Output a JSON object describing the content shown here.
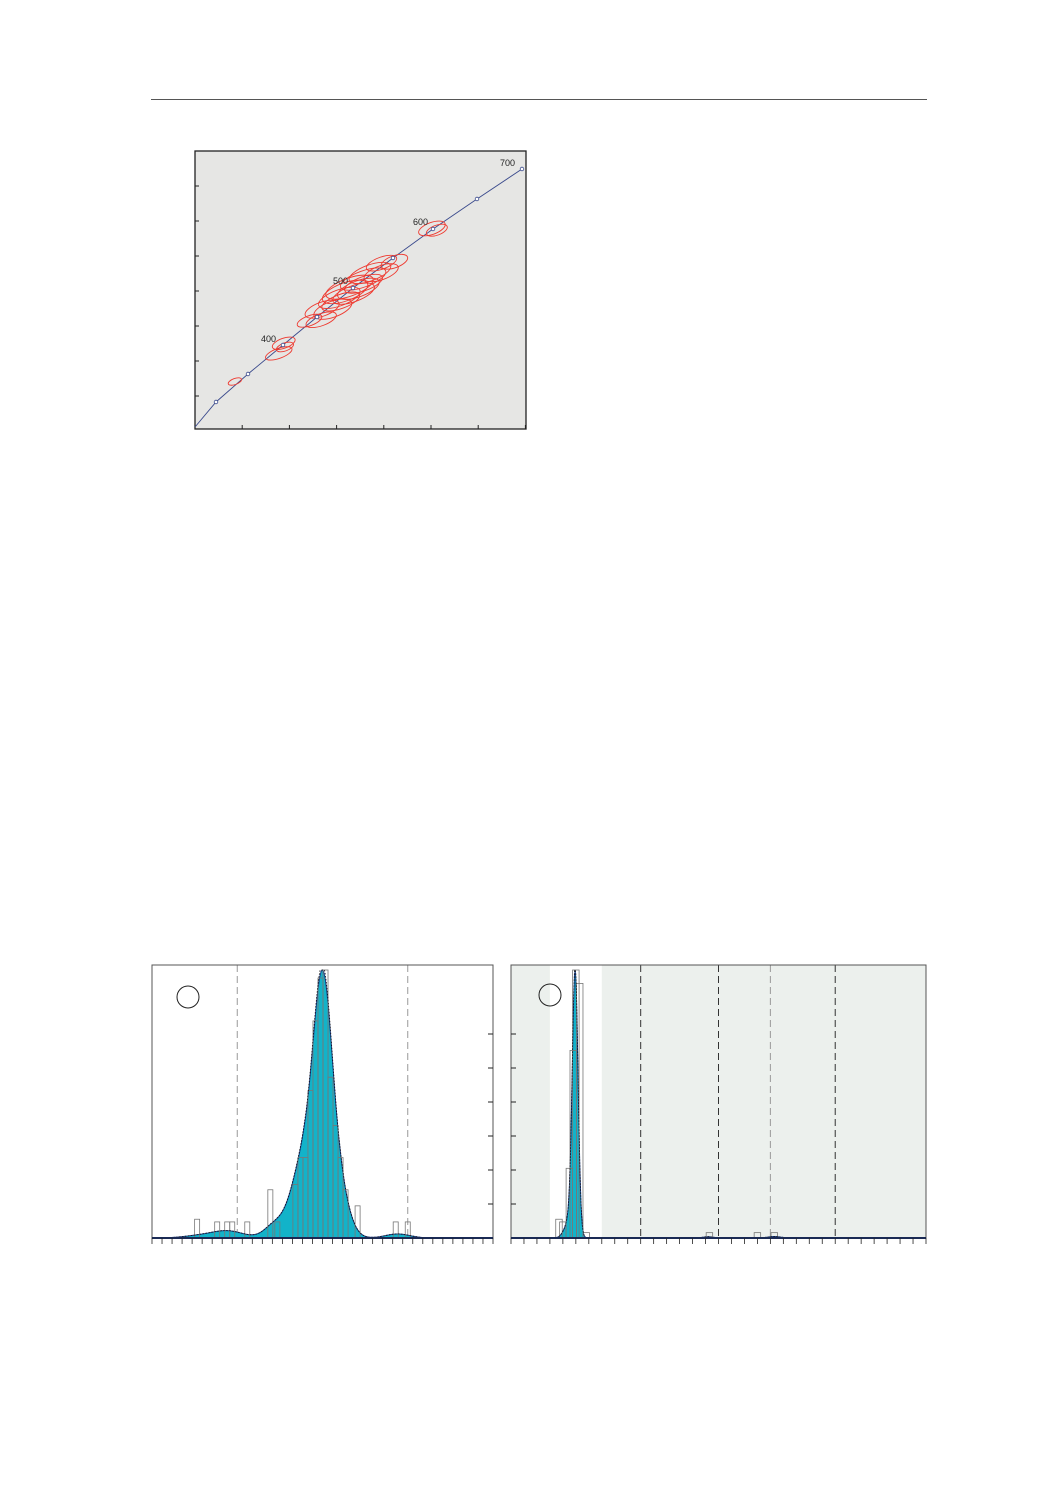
{
  "chart_data": [
    {
      "type": "scatter",
      "kind": "concordia-error-ellipses",
      "background": "#e6e6e4",
      "concordia_color": "#3a4a8c",
      "ellipse_color": "#ee3a30",
      "concordia_ages": [
        300,
        350,
        400,
        450,
        500,
        550,
        600,
        650,
        700
      ],
      "age_labels": [
        "400",
        "500",
        "600",
        "700"
      ],
      "ellipses": [
        {
          "age": 335,
          "rx": 7,
          "ry": 3
        },
        {
          "age": 392,
          "rx": 14,
          "ry": 5
        },
        {
          "age": 398,
          "rx": 12,
          "ry": 5
        },
        {
          "age": 405,
          "rx": 9,
          "ry": 4
        },
        {
          "age": 440,
          "rx": 13,
          "ry": 5
        },
        {
          "age": 450,
          "rx": 16,
          "ry": 6
        },
        {
          "age": 462,
          "rx": 18,
          "ry": 7
        },
        {
          "age": 470,
          "rx": 20,
          "ry": 8
        },
        {
          "age": 478,
          "rx": 22,
          "ry": 8
        },
        {
          "age": 485,
          "rx": 20,
          "ry": 7
        },
        {
          "age": 490,
          "rx": 24,
          "ry": 9
        },
        {
          "age": 495,
          "rx": 22,
          "ry": 8
        },
        {
          "age": 500,
          "rx": 25,
          "ry": 9
        },
        {
          "age": 505,
          "rx": 22,
          "ry": 8
        },
        {
          "age": 510,
          "rx": 24,
          "ry": 8
        },
        {
          "age": 515,
          "rx": 20,
          "ry": 7
        },
        {
          "age": 522,
          "rx": 22,
          "ry": 8
        },
        {
          "age": 530,
          "rx": 18,
          "ry": 7
        },
        {
          "age": 540,
          "rx": 16,
          "ry": 6
        },
        {
          "age": 550,
          "rx": 14,
          "ry": 6
        },
        {
          "age": 596,
          "rx": 14,
          "ry": 6
        },
        {
          "age": 606,
          "rx": 11,
          "ry": 5
        }
      ]
    },
    {
      "type": "histogram",
      "fill_color": "#12b3c9",
      "outline_color": "#1a3f8a",
      "dashed_lines_x": [
        8.5,
        25.5
      ],
      "x_ticks": 34,
      "y_ticks": 7,
      "components": [
        {
          "mu": 17.0,
          "sigma": 0.9,
          "weight": 1.0
        },
        {
          "mu": 15.3,
          "sigma": 1.3,
          "weight": 0.42
        },
        {
          "mu": 18.3,
          "sigma": 1.1,
          "weight": 0.3
        },
        {
          "mu": 12.2,
          "sigma": 1.0,
          "weight": 0.06
        },
        {
          "mu": 7.5,
          "sigma": 1.6,
          "weight": 0.035
        },
        {
          "mu": 4.5,
          "sigma": 1.5,
          "weight": 0.01
        },
        {
          "mu": 24.5,
          "sigma": 1.2,
          "weight": 0.02
        }
      ],
      "bars": [
        {
          "x": 4.5,
          "h": 0.07
        },
        {
          "x": 6.5,
          "h": 0.06
        },
        {
          "x": 7.5,
          "h": 0.06
        },
        {
          "x": 8.0,
          "h": 0.06
        },
        {
          "x": 9.5,
          "h": 0.06
        },
        {
          "x": 11.8,
          "h": 0.18
        },
        {
          "x": 12.5,
          "h": 0.06
        },
        {
          "x": 14.3,
          "h": 0.2
        },
        {
          "x": 14.8,
          "h": 0.3
        },
        {
          "x": 15.3,
          "h": 0.3
        },
        {
          "x": 15.8,
          "h": 0.55
        },
        {
          "x": 16.3,
          "h": 0.81
        },
        {
          "x": 16.8,
          "h": 0.97
        },
        {
          "x": 17.3,
          "h": 1.0
        },
        {
          "x": 17.8,
          "h": 0.6
        },
        {
          "x": 18.3,
          "h": 0.42
        },
        {
          "x": 18.8,
          "h": 0.3
        },
        {
          "x": 19.3,
          "h": 0.18
        },
        {
          "x": 20.5,
          "h": 0.12
        },
        {
          "x": 24.3,
          "h": 0.06
        },
        {
          "x": 25.5,
          "h": 0.06
        }
      ]
    },
    {
      "type": "histogram",
      "fill_color": "#12b3c9",
      "outline_color": "#1a3f8a",
      "background": "#ecf0ed",
      "highlight_band_x": [
        3,
        7
      ],
      "dashed_lines_x": [
        10,
        16,
        20,
        25
      ],
      "x_ticks": 32,
      "y_ticks": 7,
      "components": [
        {
          "mu": 4.95,
          "sigma": 0.22,
          "weight": 1.0
        },
        {
          "mu": 4.6,
          "sigma": 0.4,
          "weight": 0.08
        },
        {
          "mu": 15.2,
          "sigma": 0.4,
          "weight": 0.005
        },
        {
          "mu": 20.3,
          "sigma": 0.5,
          "weight": 0.006
        }
      ],
      "bars": [
        {
          "x": 3.7,
          "h": 0.07
        },
        {
          "x": 4.0,
          "h": 0.06
        },
        {
          "x": 4.5,
          "h": 0.26
        },
        {
          "x": 4.8,
          "h": 0.7
        },
        {
          "x": 5.0,
          "h": 1.0
        },
        {
          "x": 5.3,
          "h": 0.95
        },
        {
          "x": 5.8,
          "h": 0.02
        },
        {
          "x": 15.3,
          "h": 0.02
        },
        {
          "x": 19.0,
          "h": 0.02
        },
        {
          "x": 20.3,
          "h": 0.02
        }
      ]
    }
  ]
}
